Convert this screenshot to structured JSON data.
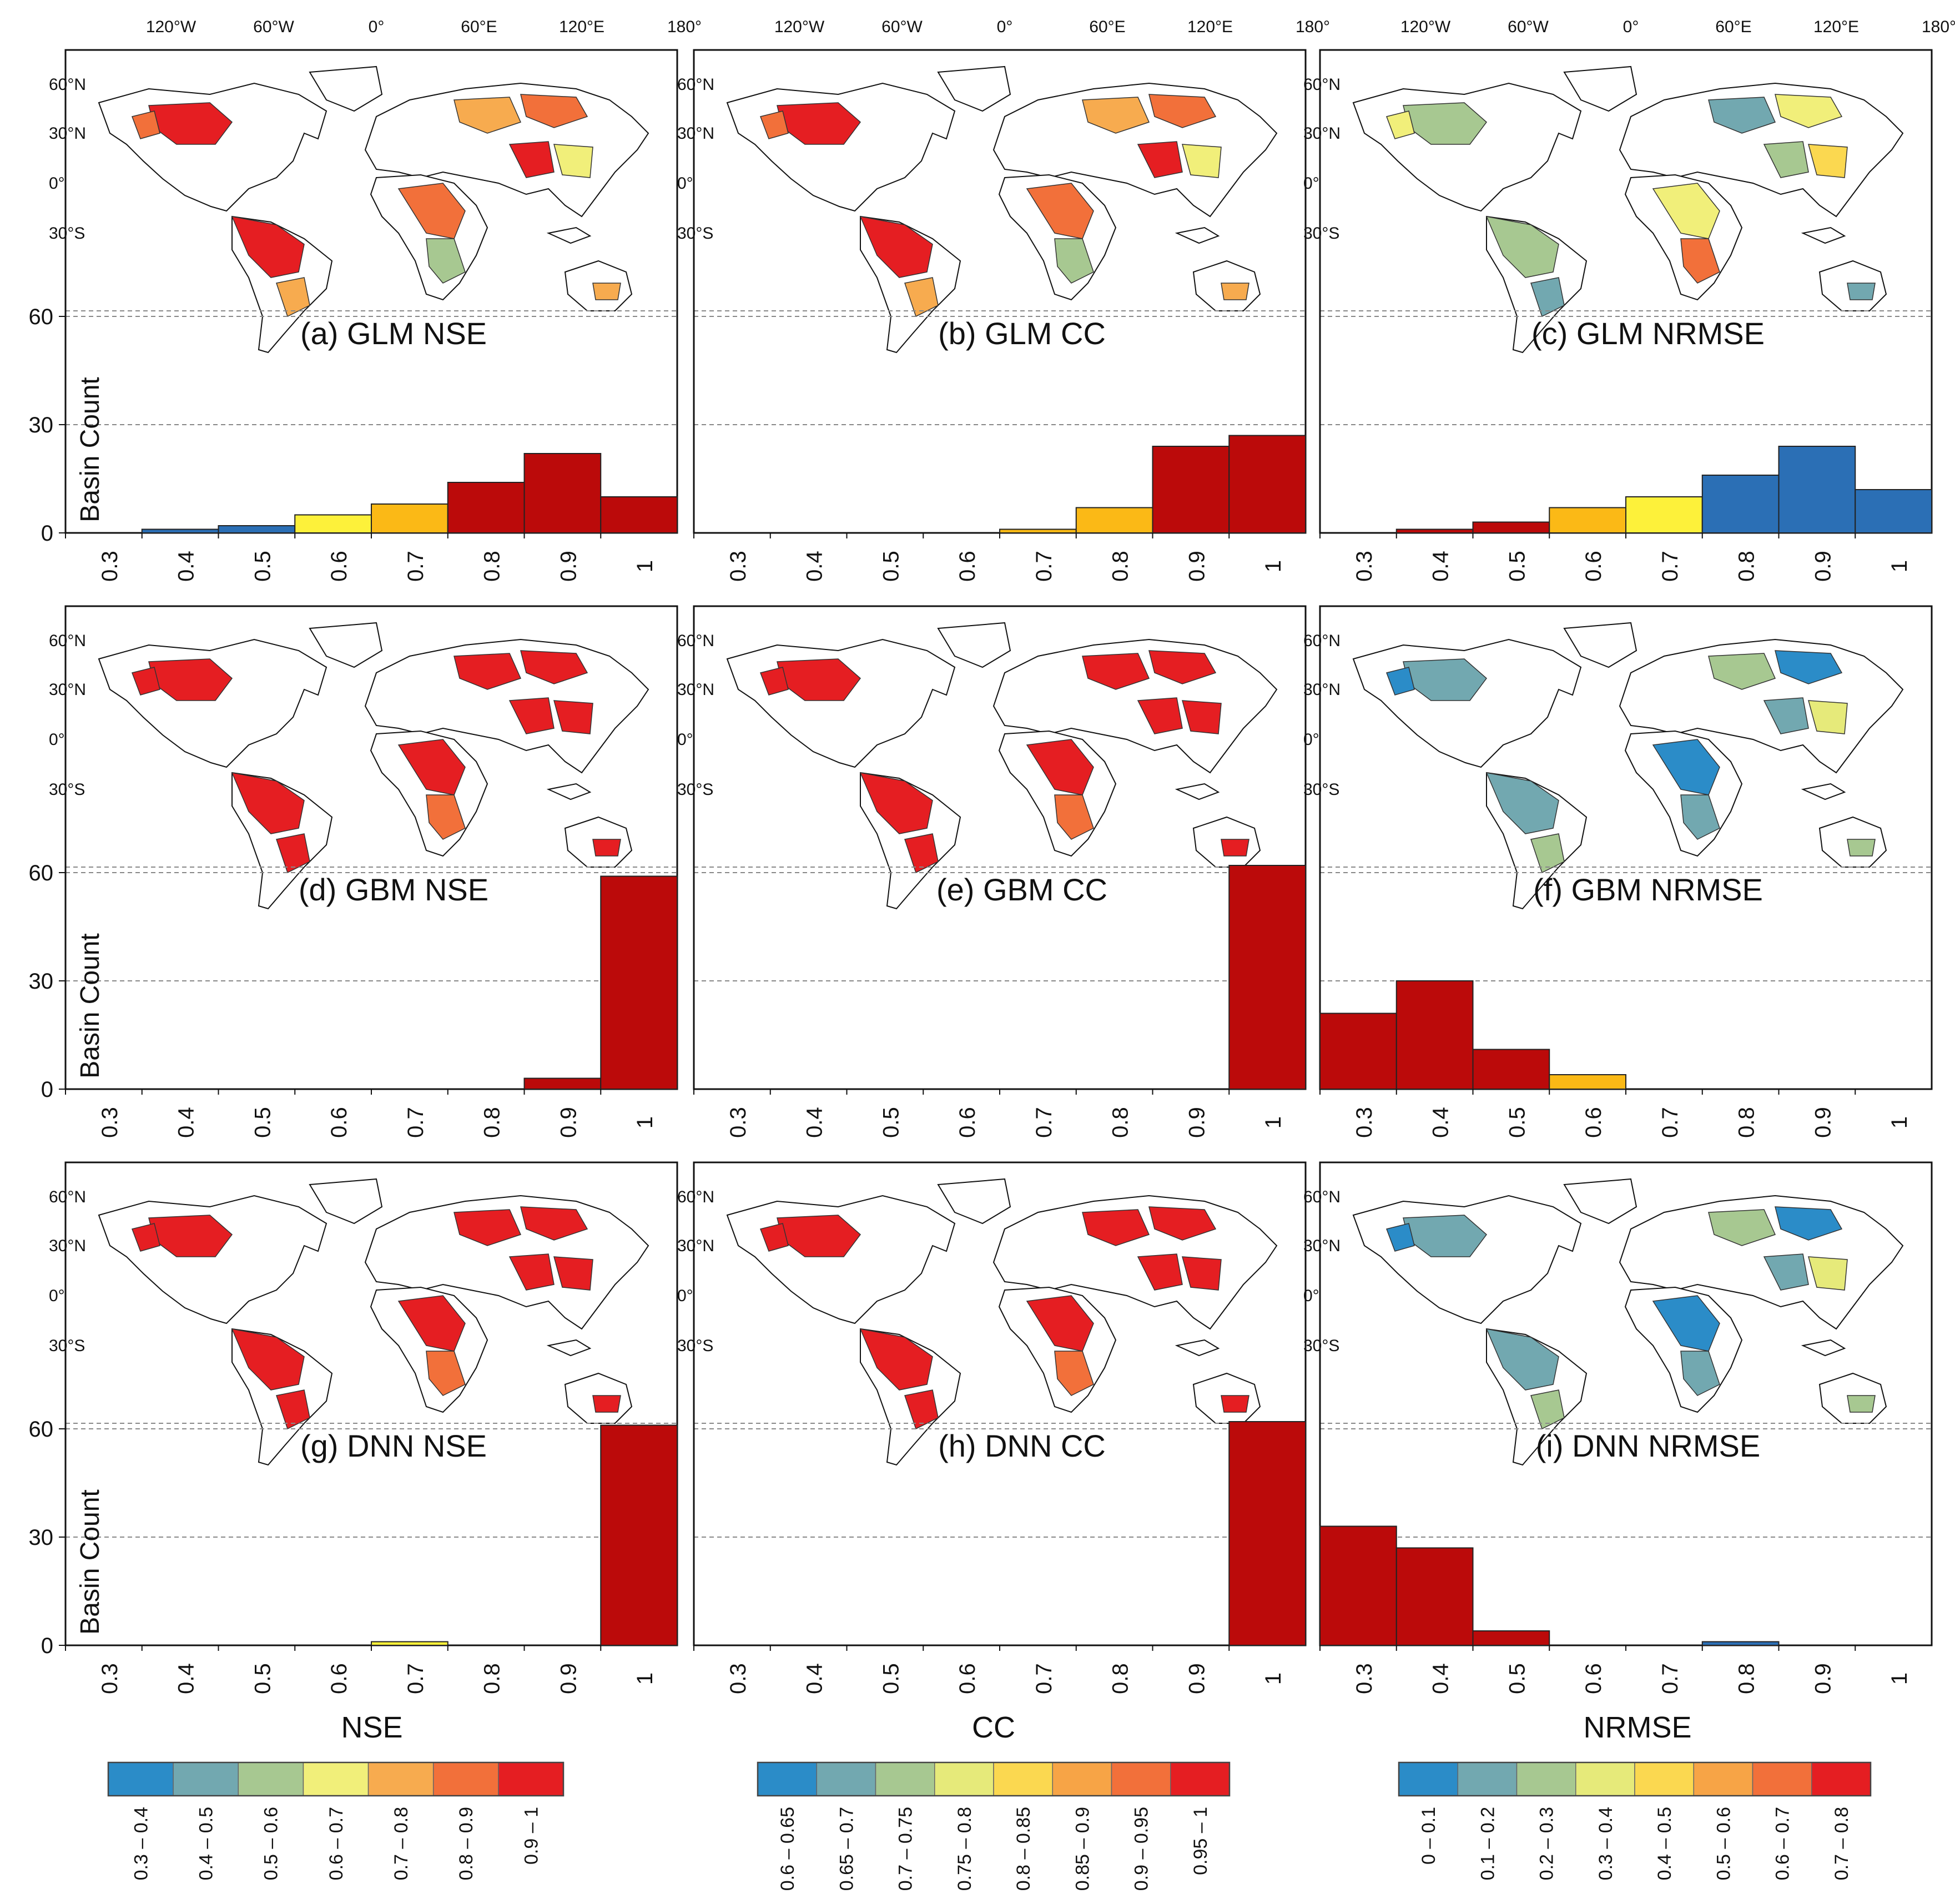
{
  "figure": {
    "lon_labels": [
      "120°W",
      "60°W",
      "0°",
      "60°E",
      "120°E",
      "180°"
    ],
    "lat_labels": [
      "60°N",
      "30°N",
      "0°",
      "30°S"
    ],
    "y_axis_label": "Basin Count",
    "y_ticks": [
      0,
      30,
      60
    ],
    "x_ticks": [
      "0.3",
      "0.4",
      "0.5",
      "0.6",
      "0.7",
      "0.8",
      "0.9",
      "1"
    ],
    "column_labels": [
      "NSE",
      "CC",
      "NRMSE"
    ]
  },
  "legends": [
    {
      "colors": [
        "#2b8cc8",
        "#72a8b0",
        "#a7c891",
        "#f1ef7a",
        "#f7ab4f",
        "#f2703a",
        "#e51e22"
      ],
      "labels": [
        "0.3 – 0.4",
        "0.4 – 0.5",
        "0.5 – 0.6",
        "0.6 – 0.7",
        "0.7 – 0.8",
        "0.8 – 0.9",
        "0.9 – 1"
      ]
    },
    {
      "colors": [
        "#2b8cc8",
        "#72a8b0",
        "#a7c891",
        "#e6ea7a",
        "#fbd850",
        "#f7a446",
        "#f2703a",
        "#e51e22"
      ],
      "labels": [
        "0.6 – 0.65",
        "0.65 – 0.7",
        "0.7 – 0.75",
        "0.75 – 0.8",
        "0.8 – 0.85",
        "0.85 – 0.9",
        "0.9 – 0.95",
        "0.95 – 1"
      ]
    },
    {
      "colors": [
        "#2b8cc8",
        "#72a8b0",
        "#a7c891",
        "#e6ea7a",
        "#fbd850",
        "#f7a446",
        "#f2703a",
        "#e51e22"
      ],
      "labels": [
        "0 – 0.1",
        "0.1 – 0.2",
        "0.2 – 0.3",
        "0.3 – 0.4",
        "0.4 – 0.5",
        "0.5 – 0.6",
        "0.6 – 0.7",
        "0.7 – 0.8"
      ]
    }
  ],
  "chart_data": [
    {
      "type": "bar",
      "panel": "(a)",
      "model": "GLM",
      "metric": "NSE",
      "title": "(a)  GLM NSE",
      "categories": [
        "0.3",
        "0.4",
        "0.5",
        "0.6",
        "0.7",
        "0.8",
        "0.9",
        "1"
      ],
      "values": [
        0,
        1,
        2,
        5,
        8,
        14,
        22,
        10
      ],
      "bar_colors": [
        "#2b6fb5",
        "#2b6fb5",
        "#2b6fb5",
        "#fdf13a",
        "#fbb916",
        "#bb0a0a",
        "#bb0a0a",
        "#bb0a0a"
      ],
      "ylim": [
        0,
        60
      ],
      "map_tone": "mixed"
    },
    {
      "type": "bar",
      "panel": "(b)",
      "model": "GLM",
      "metric": "CC",
      "title": "(b)   GLM CC",
      "categories": [
        "0.3",
        "0.4",
        "0.5",
        "0.6",
        "0.7",
        "0.8",
        "0.9",
        "1"
      ],
      "values": [
        0,
        0,
        0,
        0,
        1,
        7,
        24,
        27
      ],
      "bar_colors": [
        "#bb0a0a",
        "#bb0a0a",
        "#bb0a0a",
        "#bb0a0a",
        "#fbb916",
        "#fbb916",
        "#bb0a0a",
        "#bb0a0a"
      ],
      "ylim": [
        0,
        60
      ],
      "map_tone": "mixed"
    },
    {
      "type": "bar",
      "panel": "(c)",
      "model": "GLM",
      "metric": "NRMSE",
      "title": "(c)  GLM NRMSE",
      "categories": [
        "0.3",
        "0.4",
        "0.5",
        "0.6",
        "0.7",
        "0.8",
        "0.9",
        "1"
      ],
      "values": [
        0,
        1,
        3,
        7,
        10,
        16,
        24,
        12
      ],
      "bar_colors": [
        "#bb0a0a",
        "#bb0a0a",
        "#bb0a0a",
        "#fbb916",
        "#fdf13a",
        "#2b6fb5",
        "#2b6fb5",
        "#2b6fb5"
      ],
      "ylim": [
        0,
        60
      ],
      "map_tone": "mixed_cool"
    },
    {
      "type": "bar",
      "panel": "(d)",
      "model": "GBM",
      "metric": "NSE",
      "title": "(d) GBM NSE",
      "categories": [
        "0.3",
        "0.4",
        "0.5",
        "0.6",
        "0.7",
        "0.8",
        "0.9",
        "1"
      ],
      "values": [
        0,
        0,
        0,
        0,
        0,
        0,
        3,
        59
      ],
      "bar_colors": [
        "#bb0a0a",
        "#bb0a0a",
        "#bb0a0a",
        "#bb0a0a",
        "#bb0a0a",
        "#bb0a0a",
        "#bb0a0a",
        "#bb0a0a"
      ],
      "ylim": [
        0,
        60
      ],
      "map_tone": "red"
    },
    {
      "type": "bar",
      "panel": "(e)",
      "model": "GBM",
      "metric": "CC",
      "title": "(e)  GBM CC",
      "categories": [
        "0.3",
        "0.4",
        "0.5",
        "0.6",
        "0.7",
        "0.8",
        "0.9",
        "1"
      ],
      "values": [
        0,
        0,
        0,
        0,
        0,
        0,
        0,
        62
      ],
      "bar_colors": [
        "#bb0a0a",
        "#bb0a0a",
        "#bb0a0a",
        "#bb0a0a",
        "#bb0a0a",
        "#bb0a0a",
        "#bb0a0a",
        "#bb0a0a"
      ],
      "ylim": [
        0,
        60
      ],
      "map_tone": "red"
    },
    {
      "type": "bar",
      "panel": "(f)",
      "model": "GBM",
      "metric": "NRMSE",
      "title": "(f) GBM NRMSE",
      "categories": [
        "0.3",
        "0.4",
        "0.5",
        "0.6",
        "0.7",
        "0.8",
        "0.9",
        "1"
      ],
      "values": [
        21,
        30,
        11,
        4,
        0,
        0,
        0,
        0
      ],
      "bar_colors": [
        "#bb0a0a",
        "#bb0a0a",
        "#bb0a0a",
        "#fbb916",
        "#bb0a0a",
        "#bb0a0a",
        "#bb0a0a",
        "#bb0a0a"
      ],
      "ylim": [
        0,
        60
      ],
      "map_tone": "cool"
    },
    {
      "type": "bar",
      "panel": "(g)",
      "model": "DNN",
      "metric": "NSE",
      "title": "(g)  DNN NSE",
      "categories": [
        "0.3",
        "0.4",
        "0.5",
        "0.6",
        "0.7",
        "0.8",
        "0.9",
        "1"
      ],
      "values": [
        0,
        0,
        0,
        0,
        1,
        0,
        0,
        61
      ],
      "bar_colors": [
        "#bb0a0a",
        "#bb0a0a",
        "#bb0a0a",
        "#bb0a0a",
        "#fdf13a",
        "#bb0a0a",
        "#bb0a0a",
        "#bb0a0a"
      ],
      "ylim": [
        0,
        60
      ],
      "map_tone": "red"
    },
    {
      "type": "bar",
      "panel": "(h)",
      "model": "DNN",
      "metric": "CC",
      "title": "(h)   DNN CC",
      "categories": [
        "0.3",
        "0.4",
        "0.5",
        "0.6",
        "0.7",
        "0.8",
        "0.9",
        "1"
      ],
      "values": [
        0,
        0,
        0,
        0,
        0,
        0,
        0,
        62
      ],
      "bar_colors": [
        "#bb0a0a",
        "#bb0a0a",
        "#bb0a0a",
        "#bb0a0a",
        "#bb0a0a",
        "#bb0a0a",
        "#bb0a0a",
        "#bb0a0a"
      ],
      "ylim": [
        0,
        60
      ],
      "map_tone": "red"
    },
    {
      "type": "bar",
      "panel": "(i)",
      "model": "DNN",
      "metric": "NRMSE",
      "title": "(i)  DNN NRMSE",
      "categories": [
        "0.3",
        "0.4",
        "0.5",
        "0.6",
        "0.7",
        "0.8",
        "0.9",
        "1"
      ],
      "values": [
        33,
        27,
        4,
        0,
        0,
        1,
        0,
        0
      ],
      "bar_colors": [
        "#bb0a0a",
        "#bb0a0a",
        "#bb0a0a",
        "#bb0a0a",
        "#bb0a0a",
        "#2b6fb5",
        "#bb0a0a",
        "#bb0a0a"
      ],
      "ylim": [
        0,
        60
      ],
      "map_tone": "cool"
    }
  ]
}
